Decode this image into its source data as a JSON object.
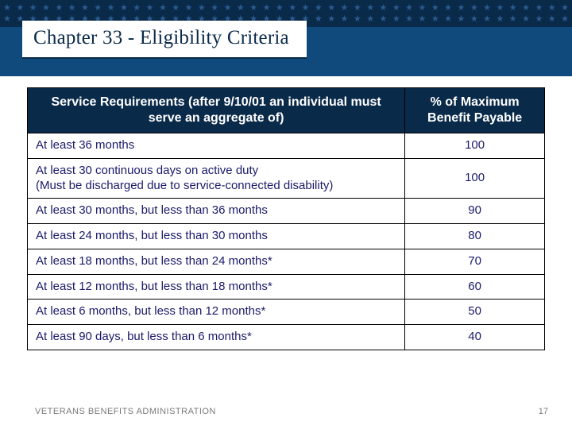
{
  "colors": {
    "band_bg": "#0a2a4a",
    "title_band_bg": "#104a7d",
    "star_color": "#2a5b8f",
    "title_text": "#0a2a4a",
    "cell_text": "#1a1a6a",
    "footer_text": "#7a7a7a",
    "border": "#000000",
    "header_bg": "#0a2a4a",
    "header_text": "#ffffff"
  },
  "title": "Chapter 33 - Eligibility Criteria",
  "table": {
    "columns": [
      "Service Requirements (after 9/10/01 an individual must serve an aggregate of)",
      "% of Maximum Benefit Payable"
    ],
    "rows": [
      [
        "At least 36 months",
        "100"
      ],
      [
        "At least 30 continuous days on active duty\n(Must be discharged due to service-connected disability)",
        "100"
      ],
      [
        "At least 30 months, but less than 36 months",
        "90"
      ],
      [
        "At least 24 months, but less than 30 months",
        "80"
      ],
      [
        "At least 18 months, but less than 24 months*",
        "70"
      ],
      [
        "At least 12 months, but less than 18 months*",
        "60"
      ],
      [
        "At least 6 months, but less than 12 months*",
        "50"
      ],
      [
        "At least 90 days, but less than 6 months*",
        "40"
      ]
    ]
  },
  "footer": {
    "org": "VETERANS BENEFITS ADMINISTRATION",
    "page": "17"
  },
  "stars_per_row": 44,
  "star_rows": 2
}
